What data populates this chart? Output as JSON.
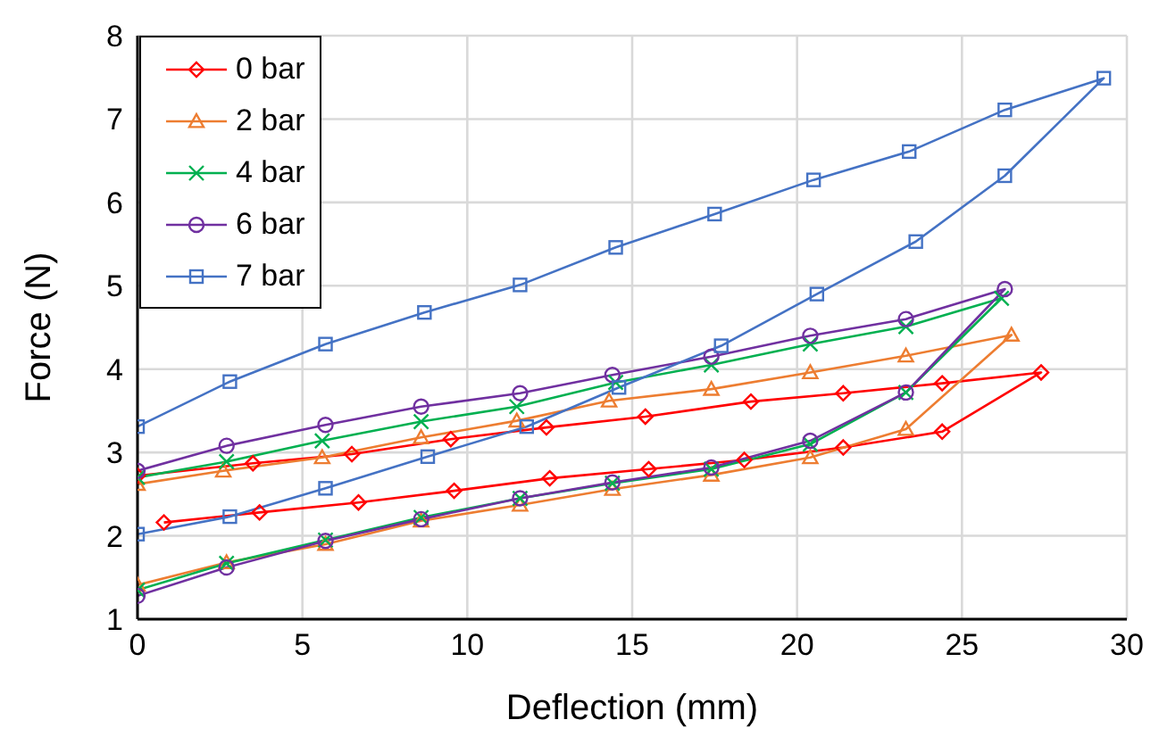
{
  "chart_data": {
    "type": "line",
    "xlabel": "Deflection (mm)",
    "ylabel": "Force (N)",
    "xlim": [
      0,
      30
    ],
    "xticks": [
      0,
      5,
      10,
      15,
      20,
      25,
      30
    ],
    "ylim": [
      1,
      8
    ],
    "yticks": [
      1,
      2,
      3,
      4,
      5,
      6,
      7,
      8
    ],
    "grid": true,
    "legend": "top left",
    "line_style": "solid",
    "series": [
      {
        "name": "0 bar",
        "color": "#ff0000",
        "marker": "diamond",
        "x": [
          0.8,
          3.7,
          6.7,
          9.6,
          12.5,
          15.5,
          18.4,
          21.4,
          24.4,
          27.4,
          24.4,
          21.4,
          18.6,
          15.4,
          12.4,
          9.5,
          6.5,
          3.5,
          0
        ],
        "values": [
          2.16,
          2.28,
          2.4,
          2.54,
          2.69,
          2.8,
          2.91,
          3.06,
          3.25,
          3.96,
          3.83,
          3.71,
          3.61,
          3.43,
          3.3,
          3.16,
          2.98,
          2.87,
          2.72
        ]
      },
      {
        "name": "2 bar",
        "color": "#ed7d31",
        "marker": "triangle",
        "x": [
          0,
          2.7,
          5.7,
          8.6,
          11.6,
          14.4,
          17.4,
          20.4,
          23.3,
          26.5,
          23.3,
          20.4,
          17.4,
          14.3,
          11.5,
          8.6,
          5.6,
          2.6,
          0
        ],
        "values": [
          1.41,
          1.68,
          1.9,
          2.18,
          2.37,
          2.56,
          2.73,
          2.94,
          3.28,
          4.41,
          4.16,
          3.96,
          3.76,
          3.62,
          3.38,
          3.18,
          2.94,
          2.78,
          2.62
        ]
      },
      {
        "name": "4 bar",
        "color": "#00b050",
        "marker": "cross",
        "x": [
          0,
          2.7,
          5.7,
          8.6,
          11.6,
          14.4,
          17.4,
          20.4,
          23.3,
          26.2,
          23.3,
          20.4,
          17.4,
          14.5,
          11.5,
          8.6,
          5.6,
          2.7,
          0
        ],
        "values": [
          1.35,
          1.67,
          1.95,
          2.22,
          2.45,
          2.63,
          2.8,
          3.1,
          3.72,
          4.85,
          4.51,
          4.3,
          4.05,
          3.84,
          3.55,
          3.37,
          3.14,
          2.89,
          2.7
        ]
      },
      {
        "name": "6 bar",
        "color": "#7030a0",
        "marker": "circle",
        "x": [
          0,
          2.7,
          5.7,
          8.6,
          11.6,
          14.4,
          17.4,
          20.4,
          23.3,
          26.3,
          23.3,
          20.4,
          17.4,
          14.4,
          11.6,
          8.6,
          5.7,
          2.7,
          0
        ],
        "values": [
          1.28,
          1.62,
          1.94,
          2.2,
          2.45,
          2.64,
          2.82,
          3.14,
          3.72,
          4.96,
          4.6,
          4.4,
          4.15,
          3.93,
          3.71,
          3.55,
          3.33,
          3.08,
          2.78
        ]
      },
      {
        "name": "7 bar",
        "color": "#4472c4",
        "marker": "square",
        "x": [
          0,
          2.8,
          5.7,
          8.8,
          11.8,
          14.6,
          17.7,
          20.6,
          23.6,
          26.3,
          29.3,
          26.3,
          23.4,
          20.5,
          17.5,
          14.5,
          11.6,
          8.7,
          5.7,
          2.8,
          0
        ],
        "values": [
          2.02,
          2.23,
          2.57,
          2.95,
          3.31,
          3.78,
          4.28,
          4.9,
          5.53,
          6.32,
          7.49,
          7.11,
          6.61,
          6.27,
          5.86,
          5.46,
          5.01,
          4.68,
          4.3,
          3.85,
          3.31
        ]
      }
    ]
  }
}
